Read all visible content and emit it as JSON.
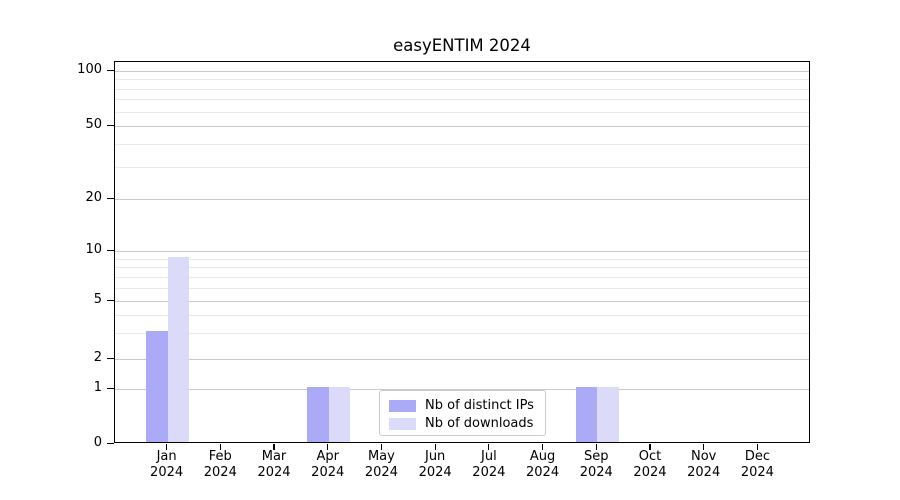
{
  "chart_data": {
    "type": "bar",
    "title": "easyENTIM 2024",
    "categories": [
      "Jan",
      "Feb",
      "Mar",
      "Apr",
      "May",
      "Jun",
      "Jul",
      "Aug",
      "Sep",
      "Oct",
      "Nov",
      "Dec"
    ],
    "year": "2024",
    "series": [
      {
        "name": "Nb of distinct IPs",
        "color": "#aaaaf6",
        "values": [
          3,
          0,
          0,
          1,
          0,
          0,
          0,
          0,
          1,
          0,
          0,
          0
        ]
      },
      {
        "name": "Nb of downloads",
        "color": "#dbdbf9",
        "values": [
          9,
          0,
          0,
          1,
          0,
          0,
          0,
          0,
          1,
          0,
          0,
          0
        ]
      }
    ],
    "y_scale": "log",
    "yticks": [
      0,
      1,
      2,
      5,
      10,
      20,
      50,
      100
    ],
    "yticks_minor": [
      3,
      4,
      6,
      7,
      8,
      9,
      30,
      40,
      60,
      70,
      80,
      90
    ],
    "ylim": [
      0,
      110
    ],
    "grid": true,
    "legend_position": "inside lower-center"
  },
  "colors": {
    "grid_major": "#c9c9c9",
    "grid_minor": "#e9e9e9",
    "spine": "#000000",
    "legend_border": "#cbcbcb"
  }
}
